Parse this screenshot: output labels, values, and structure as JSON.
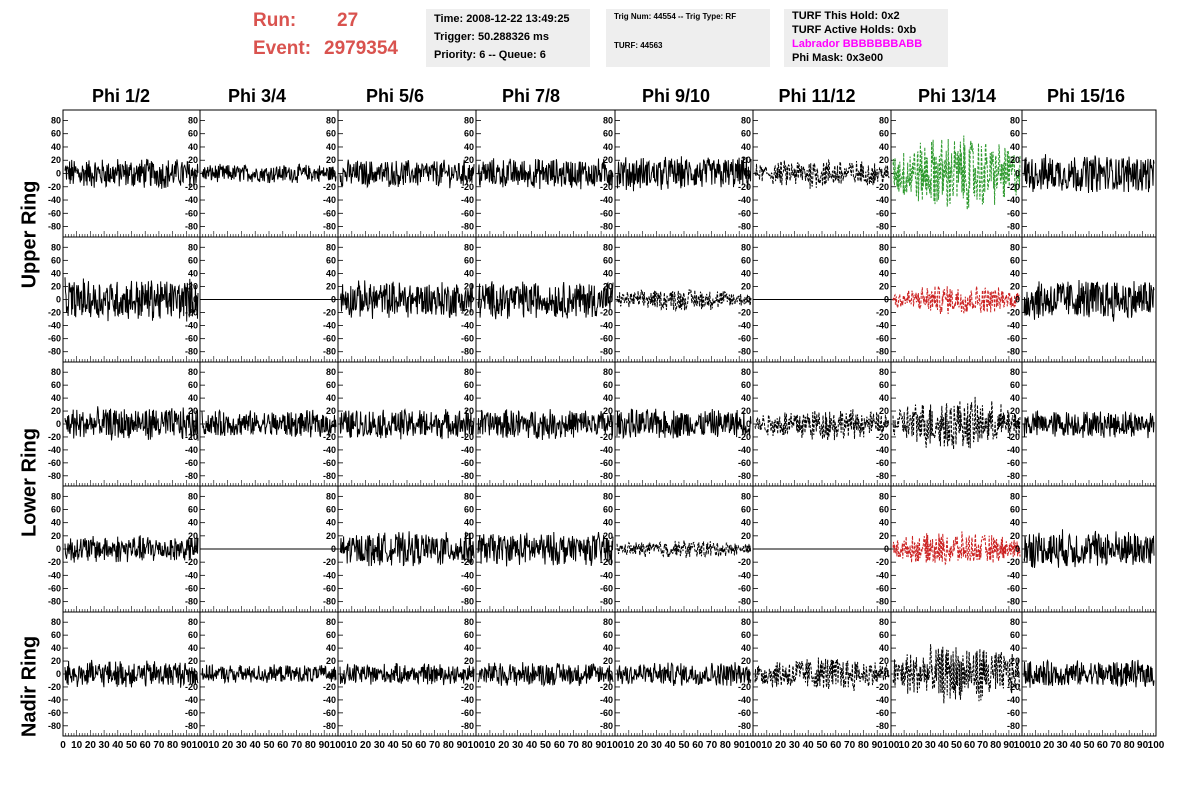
{
  "header": {
    "run_label": "Run:",
    "run_value": "27",
    "event_label": "Event:",
    "event_value": "2979354",
    "info_box_1": [
      "Time: 2008-12-22 13:49:25",
      "Trigger: 50.288326 ms",
      "Priority: 6 -- Queue: 6"
    ],
    "info_box_2": [
      "Trig Num: 44554 -- Trig Type: RF",
      "TURF: 44563"
    ],
    "info_box_3": [
      "TURF This Hold: 0x2",
      "TURF Active Holds: 0xb",
      "Labrador BBBBBBBABB",
      "Phi Mask: 0x3e00"
    ],
    "labrador_color": "#ff00ff"
  },
  "columns": [
    "Phi 1/2",
    "Phi 3/4",
    "Phi 5/6",
    "Phi 7/8",
    "Phi 9/10",
    "Phi 11/12",
    "Phi 13/14",
    "Phi 15/16"
  ],
  "row_groups": [
    "Upper Ring",
    "Lower Ring",
    "Nadir Ring"
  ],
  "chart_data": {
    "type": "line",
    "grid": "5 rows x 8 columns of waveform panels",
    "y_ticks": [
      "80",
      "60",
      "40",
      "20",
      "0",
      "-20",
      "-40",
      "-60",
      "-80"
    ],
    "x_tick_labels_first_panel": [
      "0",
      "10",
      "20",
      "30",
      "40",
      "50",
      "60",
      "70",
      "80",
      "90",
      "100"
    ],
    "x_tick_labels_other_panels": [
      "10",
      "20",
      "30",
      "40",
      "50",
      "60",
      "70",
      "80",
      "90",
      "100"
    ],
    "xlim": [
      0,
      100
    ],
    "ylim": [
      -90,
      90
    ],
    "colors": {
      "solid": "#000000",
      "green": "#2e9a2e",
      "red": "#cc2222"
    },
    "panels": [
      [
        "solid:20",
        "solid:12",
        "solid:18",
        "solid:20",
        "solid:22",
        "dash:20",
        "green:50",
        "solid:25"
      ],
      [
        "solid:28",
        "flat",
        "solid:25",
        "solid:25",
        "dash:15",
        "flat",
        "red:20",
        "solid:28"
      ],
      [
        "solid:22",
        "solid:18",
        "solid:20",
        "solid:20",
        "solid:20",
        "dash:22",
        "dash:35",
        "solid:18"
      ],
      [
        "solid:18",
        "flat",
        "solid:22",
        "solid:22",
        "dash:12",
        "flat",
        "red:22",
        "solid:25"
      ],
      [
        "solid:18",
        "solid:12",
        "solid:14",
        "solid:16",
        "solid:16",
        "dash:24",
        "dash:40",
        "solid:18"
      ]
    ]
  }
}
